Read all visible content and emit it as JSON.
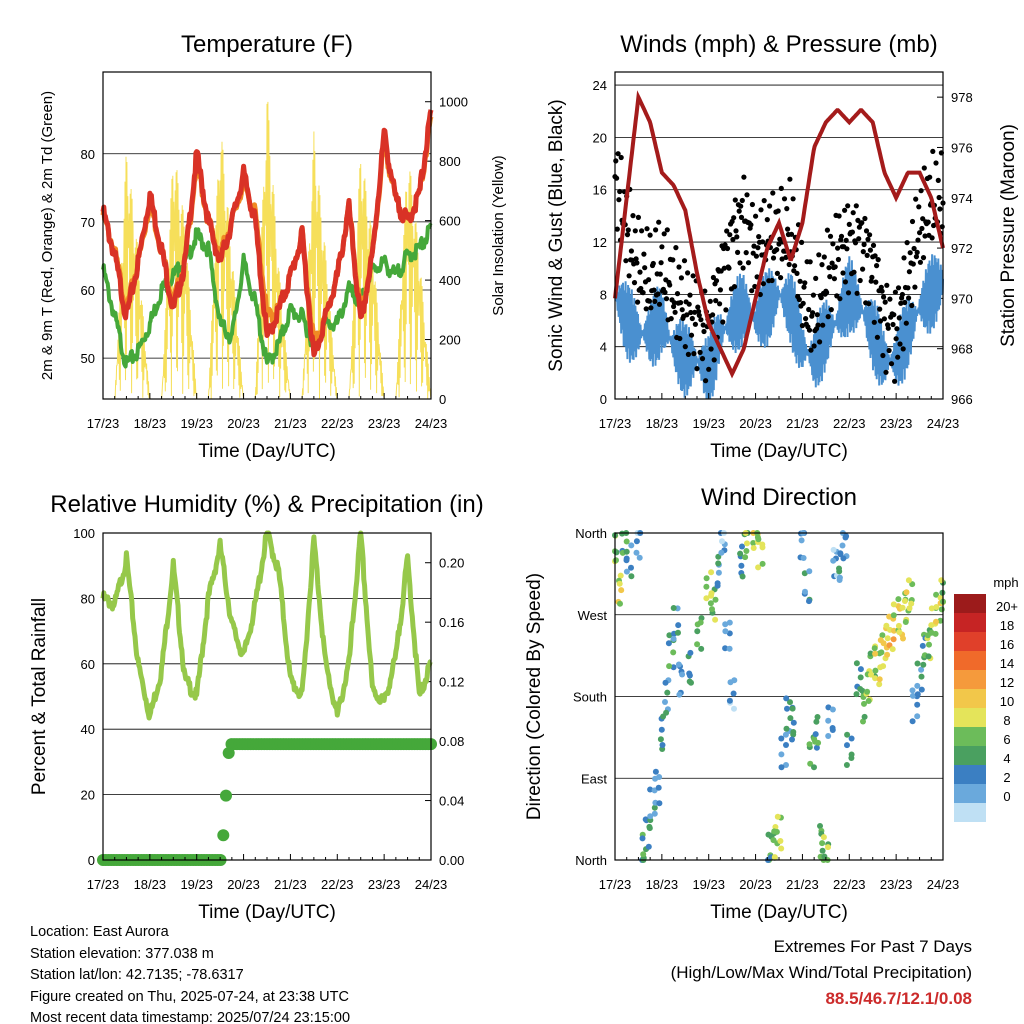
{
  "chart_data": [
    {
      "type": "line",
      "title": "Temperature (F)",
      "xlabel": "Time (Day/UTC)",
      "ylabel": "2m & 9m T (Red, Orange) & 2m Td (Green)",
      "y2label": "Solar Insolation (Yellow)",
      "x_ticks": [
        "17/23",
        "18/23",
        "19/23",
        "20/23",
        "21/23",
        "22/23",
        "23/23",
        "24/23"
      ],
      "ylim": [
        44,
        92
      ],
      "y_ticks": [
        50,
        60,
        70,
        80
      ],
      "y2lim": [
        0,
        1100
      ],
      "y2_ticks": [
        0,
        200,
        400,
        600,
        800,
        1000
      ],
      "grid": true,
      "x": [
        0,
        0.25,
        0.5,
        0.75,
        1,
        1.25,
        1.5,
        1.75,
        2,
        2.25,
        2.5,
        2.75,
        3,
        3.25,
        3.5,
        3.75,
        4,
        4.25,
        4.5,
        4.75,
        5,
        5.25,
        5.5,
        5.75,
        6,
        6.25,
        6.5,
        6.75,
        7
      ],
      "series": [
        {
          "name": "2m T",
          "color": "#d93226",
          "values": [
            71.5,
            65,
            56,
            64,
            74,
            66,
            57,
            64,
            80,
            70,
            64,
            70,
            77,
            70,
            53,
            57,
            62,
            68,
            50,
            56,
            62,
            72,
            55,
            65,
            83,
            73,
            70,
            74,
            86
          ]
        },
        {
          "name": "9m T",
          "color": "#f08a24",
          "values": [
            71,
            65.5,
            57,
            64,
            73,
            66,
            58,
            64,
            79,
            70,
            65,
            70,
            76,
            71,
            56,
            57,
            62,
            68,
            52,
            56,
            62,
            72,
            56,
            65,
            82,
            73,
            70,
            74,
            85
          ]
        },
        {
          "name": "2m Td",
          "color": "#45a83a",
          "values": [
            63,
            56,
            49,
            51,
            55,
            60,
            62,
            64,
            68,
            66,
            55,
            53,
            64,
            58,
            49,
            52,
            57,
            56,
            52,
            55,
            55,
            60,
            58,
            63,
            64,
            62,
            65,
            66,
            69
          ]
        },
        {
          "name": "Solar Insolation",
          "color": "#f6df5a",
          "axis": "y2",
          "values": [
            0,
            0,
            850,
            500,
            0,
            0,
            850,
            600,
            0,
            0,
            950,
            500,
            0,
            0,
            1050,
            450,
            0,
            0,
            900,
            500,
            0,
            0,
            850,
            550,
            0,
            0,
            850,
            500,
            0
          ]
        }
      ]
    },
    {
      "type": "scatter",
      "title": "Winds (mph) & Pressure (mb)",
      "xlabel": "Time (Day/UTC)",
      "ylabel": "Sonic Wind & Gust (Blue, Black)",
      "y2label": "Station Pressure (Maroon)",
      "x_ticks": [
        "17/23",
        "18/23",
        "19/23",
        "20/23",
        "21/23",
        "22/23",
        "23/23",
        "24/23"
      ],
      "ylim": [
        0,
        25
      ],
      "y_ticks": [
        0,
        4,
        8,
        12,
        16,
        20,
        24
      ],
      "y2lim": [
        966,
        979
      ],
      "y2_ticks": [
        966,
        968,
        970,
        972,
        974,
        976,
        978
      ],
      "grid": true,
      "x": [
        0,
        0.25,
        0.5,
        0.75,
        1,
        1.25,
        1.5,
        1.75,
        2,
        2.25,
        2.5,
        2.75,
        3,
        3.25,
        3.5,
        3.75,
        4,
        4.25,
        4.5,
        4.75,
        5,
        5.25,
        5.5,
        5.75,
        6,
        6.25,
        6.5,
        6.75,
        7
      ],
      "series": [
        {
          "name": "Wind",
          "color": "#4a90d0",
          "values": [
            8,
            6,
            5,
            5,
            6,
            4,
            3,
            3,
            2,
            5,
            6,
            7,
            6,
            7,
            8,
            7,
            4,
            3,
            5,
            6,
            8,
            7,
            5,
            3,
            3,
            5,
            7,
            8,
            9
          ]
        },
        {
          "name": "Gust",
          "color": "#000000",
          "values": [
            17,
            13,
            10,
            9,
            10,
            8,
            7,
            6,
            5,
            9,
            12,
            14,
            11,
            12,
            12,
            13,
            8,
            6,
            9,
            11,
            12,
            12,
            10,
            6,
            5,
            9,
            13,
            15,
            15
          ]
        },
        {
          "name": "Pressure",
          "color": "#a41b1b",
          "axis": "y2",
          "values": [
            970,
            974,
            978,
            977,
            975,
            974.5,
            973.5,
            971,
            969,
            968,
            967,
            968,
            970,
            972,
            973,
            971.5,
            973,
            976,
            977,
            977.5,
            977,
            977.5,
            977,
            975,
            974,
            975,
            975,
            974,
            972
          ]
        }
      ]
    },
    {
      "type": "line",
      "title": "Relative Humidity (%) & Precipitation (in)",
      "xlabel": "Time (Day/UTC)",
      "ylabel": "Percent & Total Rainfall",
      "x_ticks": [
        "17/23",
        "18/23",
        "19/23",
        "20/23",
        "21/23",
        "22/23",
        "23/23",
        "24/23"
      ],
      "ylim": [
        0,
        100
      ],
      "y_ticks": [
        0,
        20,
        40,
        60,
        80,
        100
      ],
      "y2lim": [
        0,
        0.22
      ],
      "y2_ticks": [
        "0.00",
        "0.04",
        "0.08",
        "0.12",
        "0.16",
        "0.20"
      ],
      "grid": true,
      "x": [
        0,
        0.25,
        0.5,
        0.75,
        1,
        1.25,
        1.5,
        1.75,
        2,
        2.25,
        2.5,
        2.75,
        3,
        3.25,
        3.5,
        3.75,
        4,
        4.25,
        4.5,
        4.75,
        5,
        5.25,
        5.5,
        5.75,
        6,
        6.25,
        6.5,
        6.75,
        7
      ],
      "series": [
        {
          "name": "Relative Humidity",
          "color": "#96c84a",
          "values": [
            80,
            78,
            92,
            60,
            44,
            58,
            90,
            55,
            50,
            80,
            96,
            72,
            62,
            78,
            100,
            88,
            55,
            50,
            98,
            60,
            44,
            60,
            100,
            52,
            48,
            62,
            92,
            50,
            60
          ]
        },
        {
          "name": "Total Rainfall",
          "color": "#45a83a",
          "axis": "y2",
          "x": [
            0,
            0.5,
            1,
            1.5,
            2,
            2.55,
            2.58,
            2.62,
            2.65,
            2.7,
            3,
            3.5,
            4,
            4.5,
            5,
            5.5,
            6,
            6.5,
            7
          ],
          "values": [
            0,
            0,
            0,
            0,
            0,
            0,
            0.03,
            0.04,
            0.06,
            0.078,
            0.078,
            0.078,
            0.078,
            0.078,
            0.078,
            0.078,
            0.078,
            0.078,
            0.078
          ]
        }
      ]
    },
    {
      "type": "scatter",
      "title": "Wind Direction",
      "xlabel": "Time (Day/UTC)",
      "ylabel": "Direction (Colored By Speed)",
      "x_ticks": [
        "17/23",
        "18/23",
        "19/23",
        "20/23",
        "21/23",
        "22/23",
        "23/23",
        "24/23"
      ],
      "y_tick_labels": [
        "North",
        "East",
        "South",
        "West",
        "North"
      ],
      "ylim": [
        0,
        360
      ],
      "grid": true,
      "colorbar": {
        "title": "mph",
        "labels": [
          "20+",
          "18",
          "16",
          "14",
          "12",
          "10",
          "8",
          "6",
          "4",
          "2",
          "0"
        ],
        "colors": [
          "#9c1b1b",
          "#c62424",
          "#e0402a",
          "#f06a2a",
          "#f59a3c",
          "#f2c74a",
          "#e4e45a",
          "#6cbc5a",
          "#4aa060",
          "#3b7fc2",
          "#6aa9dc",
          "#bfe0f4"
        ]
      },
      "points": [
        [
          0,
          340,
          8
        ],
        [
          0.1,
          300,
          10
        ],
        [
          0.2,
          345,
          6
        ],
        [
          0.3,
          330,
          4
        ],
        [
          0.5,
          350,
          2
        ],
        [
          0.6,
          10,
          6
        ],
        [
          0.7,
          30,
          5
        ],
        [
          0.8,
          60,
          4
        ],
        [
          0.9,
          80,
          3
        ],
        [
          1.0,
          140,
          5
        ],
        [
          1.1,
          180,
          4
        ],
        [
          1.2,
          230,
          6
        ],
        [
          1.3,
          260,
          4
        ],
        [
          1.4,
          200,
          3
        ],
        [
          1.6,
          210,
          5
        ],
        [
          1.8,
          250,
          7
        ],
        [
          2.0,
          300,
          9
        ],
        [
          2.1,
          280,
          8
        ],
        [
          2.2,
          320,
          4
        ],
        [
          2.3,
          350,
          2
        ],
        [
          2.4,
          250,
          3
        ],
        [
          2.5,
          180,
          2
        ],
        [
          2.7,
          330,
          5
        ],
        [
          2.8,
          350,
          8
        ],
        [
          3.0,
          360,
          10
        ],
        [
          3.1,
          340,
          9
        ],
        [
          3.3,
          10,
          6
        ],
        [
          3.4,
          20,
          8
        ],
        [
          3.5,
          30,
          9
        ],
        [
          3.6,
          120,
          3
        ],
        [
          3.7,
          160,
          4
        ],
        [
          3.8,
          150,
          5
        ],
        [
          4.0,
          350,
          3
        ],
        [
          4.1,
          300,
          4
        ],
        [
          4.2,
          120,
          7
        ],
        [
          4.3,
          140,
          6
        ],
        [
          4.4,
          20,
          7
        ],
        [
          4.5,
          10,
          8
        ],
        [
          4.6,
          150,
          3
        ],
        [
          4.7,
          330,
          2
        ],
        [
          4.8,
          320,
          4
        ],
        [
          4.9,
          350,
          3
        ],
        [
          5.0,
          120,
          5
        ],
        [
          5.2,
          200,
          5
        ],
        [
          5.3,
          170,
          7
        ],
        [
          5.4,
          190,
          9
        ],
        [
          5.5,
          220,
          8
        ],
        [
          5.6,
          210,
          10
        ],
        [
          5.7,
          230,
          10
        ],
        [
          5.8,
          240,
          11
        ],
        [
          5.9,
          250,
          12
        ],
        [
          6.0,
          270,
          10
        ],
        [
          6.1,
          260,
          11
        ],
        [
          6.2,
          280,
          10
        ],
        [
          6.3,
          290,
          9
        ],
        [
          6.4,
          170,
          3
        ],
        [
          6.5,
          200,
          4
        ],
        [
          6.6,
          230,
          6
        ],
        [
          6.7,
          240,
          8
        ],
        [
          6.8,
          260,
          9
        ],
        [
          6.9,
          280,
          10
        ],
        [
          7.0,
          290,
          8
        ]
      ]
    }
  ],
  "info": {
    "location": "Location: East Aurora",
    "elevation": "Station elevation: 377.038 m",
    "latlon": "Station lat/lon: 42.7135; -78.6317",
    "created": "Figure created on Thu, 2025-07-24, at 23:38 UTC",
    "recent": "Most recent data timestamp: 2025/07/24 23:15:00"
  },
  "extremes": {
    "line1": "Extremes For Past 7 Days",
    "line2": "(High/Low/Max Wind/Total Precipitation)",
    "values": "88.5/46.7/12.1/0.08"
  }
}
